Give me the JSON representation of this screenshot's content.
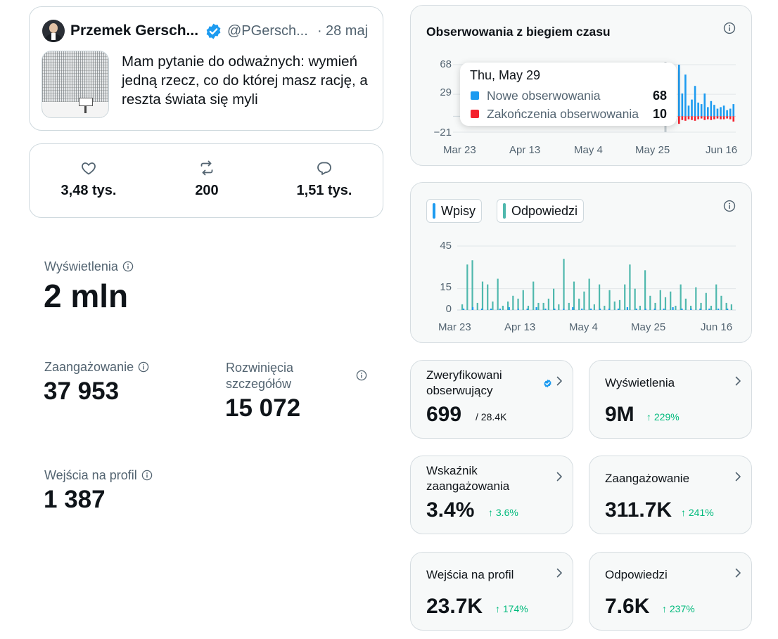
{
  "tweet": {
    "author_name": "Przemek Gersch...",
    "handle": "@PGersch...",
    "separator": "·",
    "date": "28 maj",
    "text": "Mam pytanie do odważnych: wymień jedną rzecz, co do której masz rację, a reszta świata się myli"
  },
  "engagement": {
    "likes": "3,48 tys.",
    "reposts": "200",
    "replies": "1,51 tys."
  },
  "metrics": {
    "views_label": "Wyświetlenia",
    "views_value": "2 mln",
    "engagement_label": "Zaangażowanie",
    "engagement_value": "37 953",
    "expands_label": "Rozwinięcia szczegółów",
    "expands_value": "15 072",
    "profile_label": "Wejścia na profil",
    "profile_value": "1 387"
  },
  "followers_chart": {
    "title": "Obserwowania z biegiem czasu",
    "y_ticks": [
      "68",
      "29",
      "−21"
    ],
    "x_ticks": [
      "Mar 23",
      "Apr 13",
      "May 4",
      "May 25",
      "Jun 16"
    ],
    "tooltip": {
      "date": "Thu, May 29",
      "new_label": "Nowe obserwowania",
      "new_value": "68",
      "lost_label": "Zakończenia obserwowania",
      "lost_value": "10"
    }
  },
  "posts_chart": {
    "legend_posts": "Wpisy",
    "legend_replies": "Odpowiedzi",
    "y_ticks": [
      "45",
      "15",
      "0"
    ],
    "x_ticks": [
      "Mar 23",
      "Apr 13",
      "May 4",
      "May 25",
      "Jun 16"
    ]
  },
  "chart_data": [
    {
      "type": "bar",
      "title": "Obserwowania z biegiem czasu",
      "ylim": [
        -21,
        68
      ],
      "series": [
        {
          "name": "Nowe obserwowania",
          "color": "#1d9bf0",
          "values": [
            68,
            30,
            55,
            14,
            22,
            40,
            18,
            16,
            30,
            12,
            20,
            15,
            10,
            12,
            14,
            8,
            10,
            16
          ]
        },
        {
          "name": "Zakończenia obserwowania",
          "color": "#f4212e",
          "values": [
            -10,
            -5,
            -6,
            -4,
            -5,
            -6,
            -4,
            -3,
            -5,
            -4,
            -5,
            -4,
            -3,
            -4,
            -4,
            -3,
            -4,
            -7
          ]
        }
      ]
    },
    {
      "type": "bar",
      "ylim": [
        0,
        45
      ],
      "x_range": [
        "Mar 23",
        "Jun 16"
      ],
      "series": [
        {
          "name": "Wpisy",
          "color": "#1d9bf0",
          "values": [
            1,
            2,
            1,
            1,
            1,
            2,
            1,
            1,
            2,
            1,
            1,
            1,
            2,
            1,
            1,
            1,
            1,
            1,
            2,
            1,
            1,
            1,
            1,
            2,
            1,
            1,
            1,
            1,
            1,
            1
          ]
        },
        {
          "name": "Odpowiedzi",
          "color": "#4fb8ad",
          "values": [
            4,
            32,
            35,
            5,
            20,
            18,
            6,
            22,
            3,
            6,
            10,
            8,
            14,
            3,
            20,
            5,
            5,
            8,
            15,
            4,
            36,
            5,
            20,
            8,
            13,
            22,
            4,
            18,
            3,
            14,
            6,
            7,
            18,
            32,
            15,
            3,
            28,
            10,
            5,
            14,
            9,
            13,
            3,
            18,
            8,
            3,
            16,
            5,
            12,
            3,
            18,
            10,
            5,
            4
          ]
        }
      ]
    }
  ],
  "stats": [
    {
      "label": "Zweryfikowani obserwujący",
      "value": "699",
      "sub": "/ 28.4K",
      "delta": ""
    },
    {
      "label": "Wyświetlenia",
      "value": "9M",
      "sub": "",
      "delta": "↑ 229%"
    },
    {
      "label": "Wskaźnik zaangażowania",
      "value": "3.4%",
      "sub": "",
      "delta": "↑ 3.6%"
    },
    {
      "label": "Zaangażowanie",
      "value": "311.7K",
      "sub": "",
      "delta": "↑ 241%"
    },
    {
      "label": "Wejścia na profil",
      "value": "23.7K",
      "sub": "",
      "delta": "↑ 174%"
    },
    {
      "label": "Odpowiedzi",
      "value": "7.6K",
      "sub": "",
      "delta": "↑ 237%"
    }
  ],
  "icons": [
    "verified-badge-icon",
    "heart-icon",
    "repost-icon",
    "reply-icon",
    "info-icon",
    "chevron-right-icon"
  ]
}
